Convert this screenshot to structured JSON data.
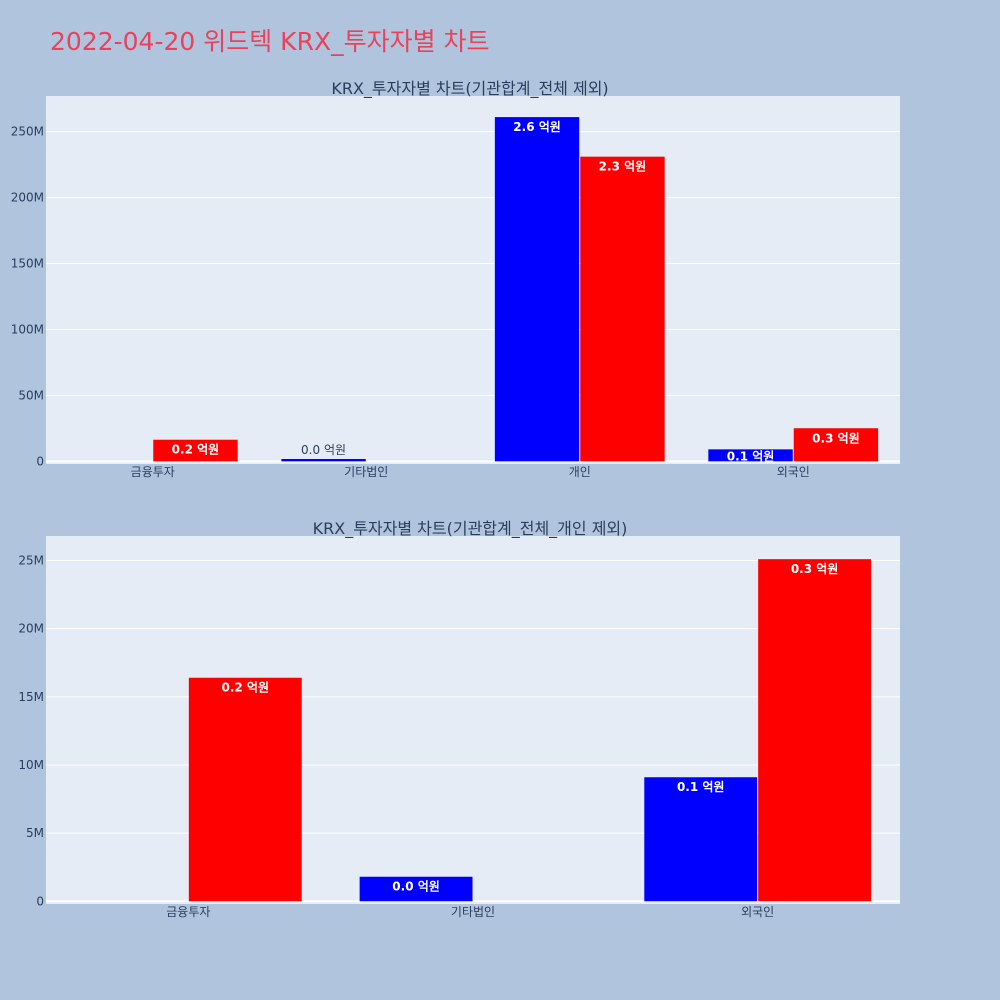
{
  "page": {
    "title": "2022-04-20 위드텍 KRX_투자자별 차트"
  },
  "colors": {
    "background": "#b0c4de",
    "plot_bg": "#e5ecf6",
    "title": "#e9425a",
    "buy": "#0000ff",
    "sell": "#ff0000",
    "text": "#2a3f5f"
  },
  "chart_data": [
    {
      "type": "bar",
      "title": "KRX_투자자별 차트(기관합계_전체 제외)",
      "categories": [
        "금융투자",
        "기타법인",
        "개인",
        "외국인"
      ],
      "series": [
        {
          "values": [
            0,
            1800000,
            261000000,
            9100000
          ],
          "labels": [
            "",
            "0.0 억원",
            "2.6 억원",
            "0.1 억원"
          ],
          "color": "#0000ff"
        },
        {
          "values": [
            16400000,
            0,
            231000000,
            25100000
          ],
          "labels": [
            "0.2 억원",
            "",
            "2.3 억원",
            "0.3 억원"
          ],
          "color": "#ff0000"
        }
      ],
      "ylim": [
        -2000000,
        277000000
      ],
      "yticks": [
        0,
        50000000,
        100000000,
        150000000,
        200000000,
        250000000
      ],
      "ytick_labels": [
        "0",
        "50M",
        "100M",
        "150M",
        "200M",
        "250M"
      ],
      "grid": true
    },
    {
      "type": "bar",
      "title": "KRX_투자자별 차트(기관합계_전체_개인 제외)",
      "categories": [
        "금융투자",
        "기타법인",
        "외국인"
      ],
      "series": [
        {
          "values": [
            0,
            1800000,
            9100000
          ],
          "labels": [
            "",
            "0.0 억원",
            "0.1 억원"
          ],
          "color": "#0000ff"
        },
        {
          "values": [
            16400000,
            0,
            25100000
          ],
          "labels": [
            "0.2 억원",
            "",
            "0.3 억원"
          ],
          "color": "#ff0000"
        }
      ],
      "ylim": [
        -200000,
        26800000
      ],
      "yticks": [
        0,
        5000000,
        10000000,
        15000000,
        20000000,
        25000000
      ],
      "ytick_labels": [
        "0",
        "5M",
        "10M",
        "15M",
        "20M",
        "25M"
      ],
      "grid": true
    }
  ]
}
